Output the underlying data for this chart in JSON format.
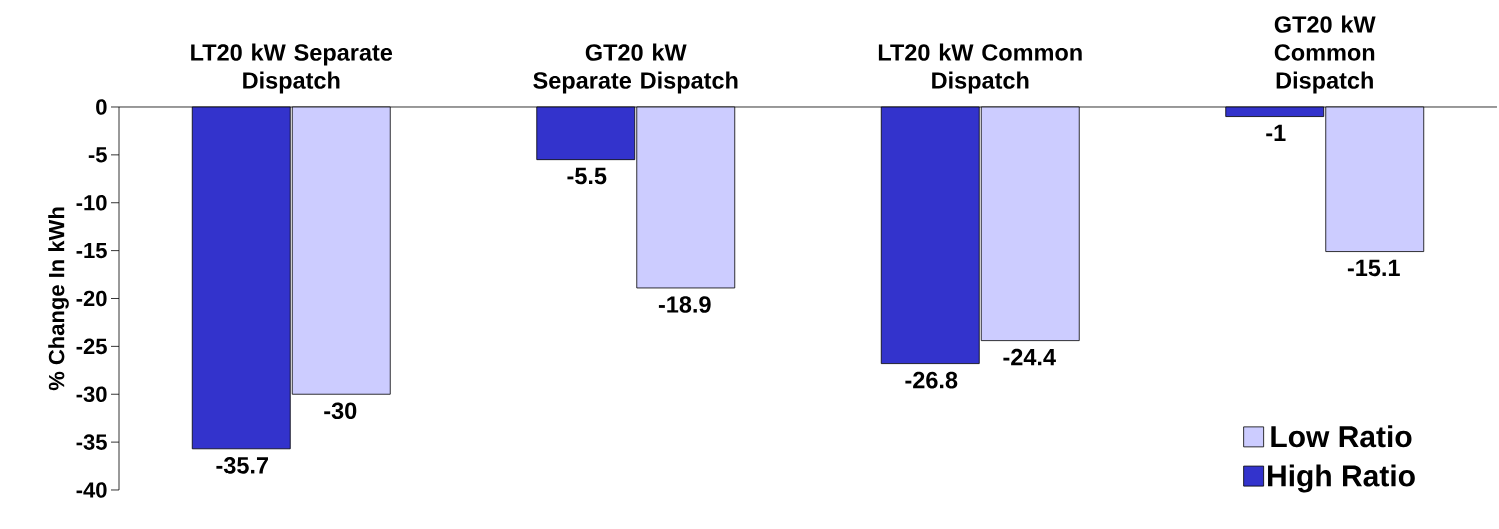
{
  "chart_data": {
    "type": "bar",
    "ylabel": "% Change In kWh",
    "categories": [
      "LT20 kW Separate Dispatch",
      "GT20 kW Separate Dispatch",
      "LT20 kW Common Dispatch",
      "GT20 kW Common Dispatch"
    ],
    "series": [
      {
        "name": "High Ratio",
        "color": "#3333cc",
        "values": [
          -35.7,
          -5.5,
          -26.8,
          -1
        ]
      },
      {
        "name": "Low Ratio",
        "color": "#ccccff",
        "values": [
          -30,
          -18.9,
          -24.4,
          -15.1
        ]
      }
    ],
    "ylim": [
      -40,
      0
    ],
    "yticks": [
      -40,
      -35,
      -30,
      -25,
      -20,
      -15,
      -10,
      -5,
      0
    ],
    "data_labels": true,
    "legend": "bottom right"
  }
}
